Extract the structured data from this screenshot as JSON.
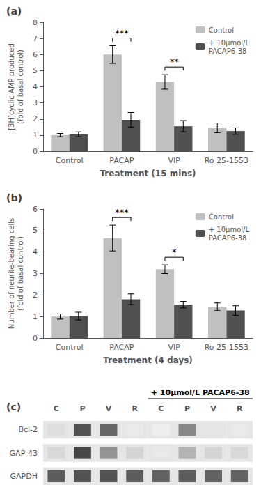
{
  "chart_data": [
    {
      "type": "bar",
      "title": "(a)",
      "categories": [
        "Control",
        "PACAP",
        "VIP",
        "Ro 25-1553"
      ],
      "series": [
        {
          "name": "Control",
          "color": "#c0c0c0",
          "values": [
            1.0,
            6.0,
            4.3,
            1.45
          ],
          "errors": [
            0.1,
            0.55,
            0.45,
            0.3
          ]
        },
        {
          "name": "+ 10μmol/L\nPACAP6-38",
          "color": "#505050",
          "values": [
            1.05,
            1.95,
            1.55,
            1.25
          ],
          "errors": [
            0.15,
            0.45,
            0.35,
            0.2
          ]
        }
      ],
      "xlabel": "Treatment (15 mins)",
      "ylabel": "[3H]cyclic AMP produced\n(fold of basal control)",
      "ylim": [
        0,
        8
      ],
      "yticks": [
        0,
        1,
        2,
        3,
        4,
        5,
        6,
        7,
        8
      ],
      "grid": false,
      "legend": "upper right",
      "annotations": [
        {
          "text": "***",
          "category": "PACAP"
        },
        {
          "text": "**",
          "category": "VIP"
        }
      ]
    },
    {
      "type": "bar",
      "title": "(b)",
      "categories": [
        "Control",
        "PACAP",
        "VIP",
        "Ro 25-1553"
      ],
      "series": [
        {
          "name": "Control",
          "color": "#c0c0c0",
          "values": [
            1.0,
            4.65,
            3.2,
            1.45
          ],
          "errors": [
            0.12,
            0.6,
            0.2,
            0.18
          ]
        },
        {
          "name": "+ 10μmol/L\nPACAP6-38",
          "color": "#505050",
          "values": [
            1.02,
            1.8,
            1.55,
            1.28
          ],
          "errors": [
            0.18,
            0.25,
            0.15,
            0.22
          ]
        }
      ],
      "xlabel": "Treatment (4 days)",
      "ylabel": "Number of neurite-bearing cells\n(fold of basal control)",
      "ylim": [
        0,
        6
      ],
      "yticks": [
        0,
        1,
        2,
        3,
        4,
        5,
        6
      ],
      "grid": false,
      "legend": "upper right",
      "annotations": [
        {
          "text": "***",
          "category": "PACAP"
        },
        {
          "text": "*",
          "category": "VIP"
        }
      ]
    },
    {
      "type": "heatmap",
      "title": "(c)",
      "categories": [
        "C",
        "P",
        "V",
        "R",
        "C",
        "P",
        "V",
        "R"
      ],
      "rows": [
        "Bcl-2",
        "GAP-43",
        "GAPDH"
      ],
      "values": [
        [
          0.15,
          0.8,
          0.7,
          0.1,
          0.08,
          0.55,
          0.12,
          0.1
        ],
        [
          0.18,
          0.85,
          0.5,
          0.2,
          0.1,
          0.35,
          0.2,
          0.18
        ],
        [
          0.75,
          0.8,
          0.8,
          0.75,
          0.72,
          0.75,
          0.72,
          0.72
        ]
      ],
      "grid": false,
      "annotations": [
        {
          "text": "+ 10μmol/L PACAP6-38",
          "span": [
            4,
            7
          ]
        }
      ]
    }
  ]
}
